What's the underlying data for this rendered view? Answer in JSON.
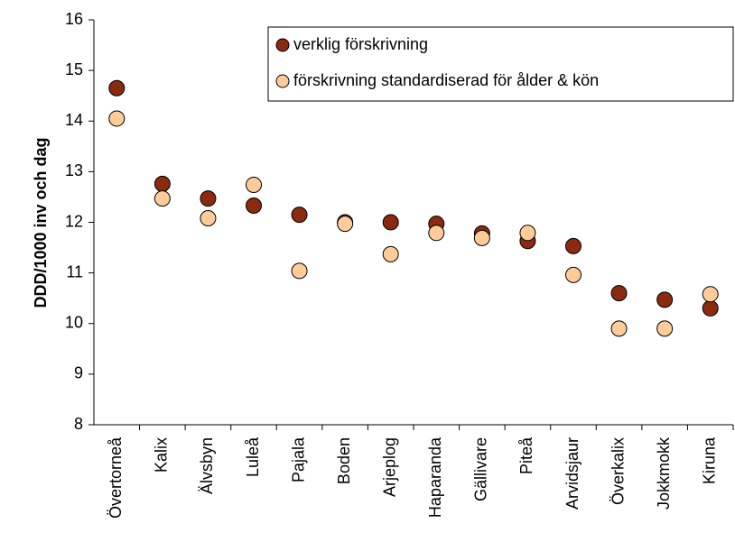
{
  "chart_data": {
    "type": "scatter",
    "y_label": "DDD/1000 inv och dag",
    "categories": [
      "Övertorneå",
      "Kalix",
      "Älvsbyn",
      "Luleå",
      "Pajala",
      "Boden",
      "Arjeplog",
      "Haparanda",
      "Gällivare",
      "Piteå",
      "Arvidsjaur",
      "Överkalix",
      "Jokkmokk",
      "Kiruna"
    ],
    "series": [
      {
        "name": "verklig förskrivning",
        "color": "#8b2a0e",
        "values": [
          14.65,
          12.76,
          12.47,
          12.33,
          12.15,
          12.0,
          12.0,
          11.97,
          11.78,
          11.63,
          11.53,
          10.6,
          10.47,
          10.3
        ]
      },
      {
        "name": "förskrivning standardiserad för ålder & kön",
        "color": "#ffcc99",
        "values": [
          14.05,
          12.47,
          12.08,
          12.74,
          11.04,
          11.97,
          11.37,
          11.79,
          11.69,
          11.79,
          10.96,
          9.9,
          9.9,
          10.58
        ]
      }
    ],
    "ylim": [
      8,
      16
    ],
    "yticks": [
      8,
      9,
      10,
      11,
      12,
      13,
      14,
      15,
      16
    ],
    "legend": "top-right"
  }
}
